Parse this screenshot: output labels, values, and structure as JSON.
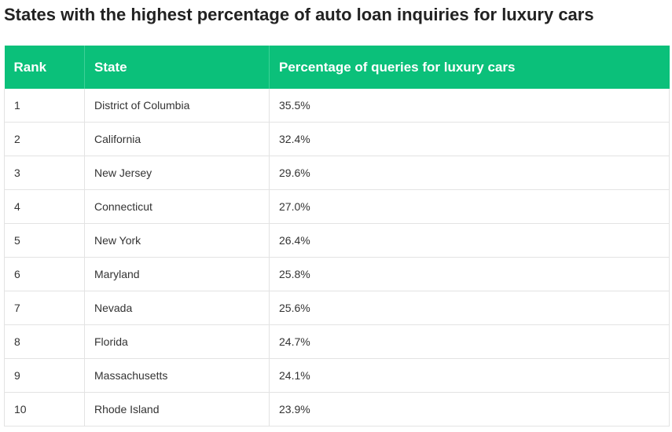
{
  "title": "States with the highest percentage of auto loan inquiries for luxury cars",
  "table": {
    "headers": [
      "Rank",
      "State",
      "Percentage of queries for luxury cars"
    ],
    "rows": [
      [
        "1",
        "District of Columbia",
        "35.5%"
      ],
      [
        "2",
        "California",
        "32.4%"
      ],
      [
        "3",
        "New Jersey",
        "29.6%"
      ],
      [
        "4",
        "Connecticut",
        "27.0%"
      ],
      [
        "5",
        "New York",
        "26.4%"
      ],
      [
        "6",
        "Maryland",
        "25.8%"
      ],
      [
        "7",
        "Nevada",
        "25.6%"
      ],
      [
        "8",
        "Florida",
        "24.7%"
      ],
      [
        "9",
        "Massachusetts",
        "24.1%"
      ],
      [
        "10",
        "Rhode Island",
        "23.9%"
      ]
    ]
  }
}
